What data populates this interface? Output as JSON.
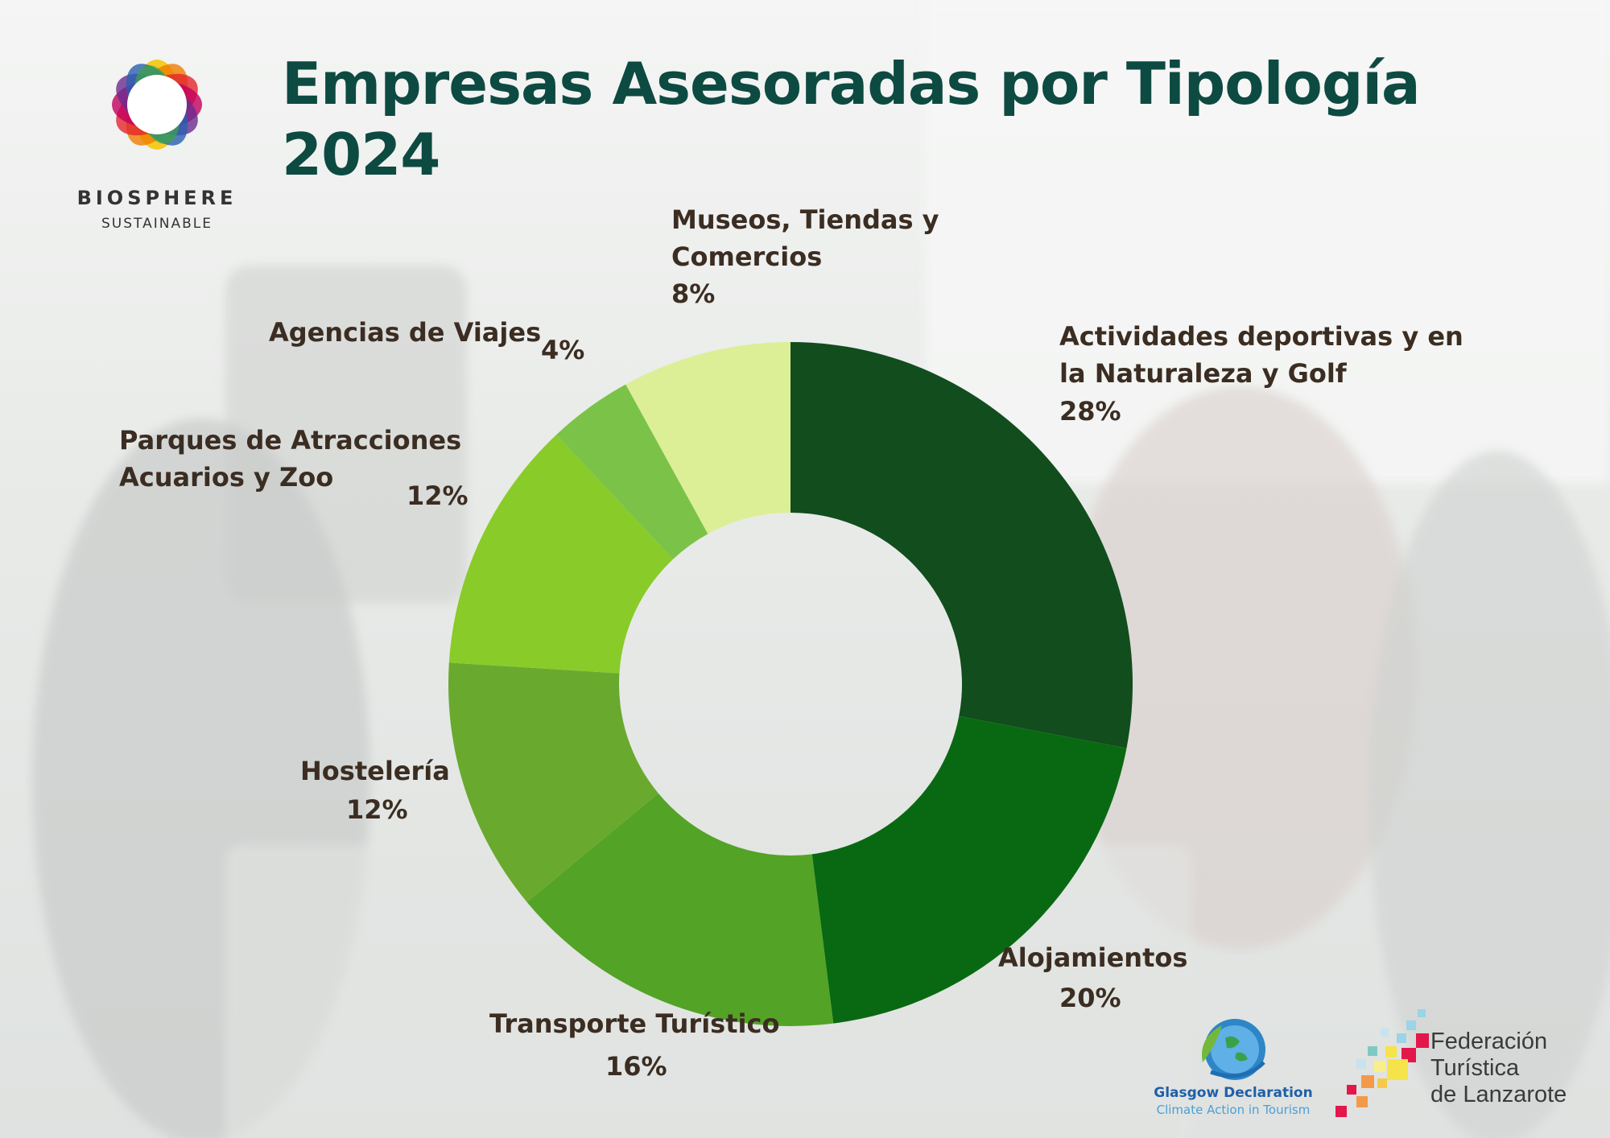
{
  "title": {
    "line1": "Empresas Asesoradas por Tipología",
    "line2": "2024"
  },
  "colors": {
    "title": "#0d4a42",
    "label": "#3b2d22"
  },
  "logos": {
    "biosphere": {
      "word": "BIOSPHERE",
      "sub": "SUSTAINABLE",
      "icon": "biosphere-flower-icon"
    },
    "glasgow": {
      "line1": "Glasgow Declaration",
      "line2": "Climate Action in Tourism",
      "icon": "globe-leaf-icon"
    },
    "federacion": {
      "line1": "Federación",
      "line2": "Turística",
      "line3": "de Lanzarote",
      "icon": "pixel-mosaic-icon"
    }
  },
  "chart_data": {
    "type": "pie",
    "donut": true,
    "title": "Empresas Asesoradas por Tipología 2024",
    "slices": [
      {
        "label": "Actividades deportivas y en la Naturaleza y Golf",
        "value": 28,
        "pct_label": "28%",
        "color": "#114d1d"
      },
      {
        "label": "Alojamientos",
        "value": 20,
        "pct_label": "20%",
        "color": "#096912"
      },
      {
        "label": "Transporte Turístico",
        "value": 16,
        "pct_label": "16%",
        "color": "#53a326"
      },
      {
        "label": "Hostelería",
        "value": 12,
        "pct_label": "12%",
        "color": "#69aa2e"
      },
      {
        "label": "Parques de Atracciones Acuarios y Zoo",
        "value": 12,
        "pct_label": "12%",
        "color": "#89cb29"
      },
      {
        "label": "Agencias de Viajes",
        "value": 4,
        "pct_label": "4%",
        "color": "#7ac348"
      },
      {
        "label": "Museos, Tiendas y Comercios",
        "value": 8,
        "pct_label": "8%",
        "color": "#dcef96"
      }
    ],
    "legend": "none"
  },
  "labels": {
    "s0": {
      "line1": "Actividades deportivas y en",
      "line2": "la Naturaleza y Golf",
      "pct": "28%"
    },
    "s1": {
      "line1": "Alojamientos",
      "pct": "20%"
    },
    "s2": {
      "line1": "Transporte Turístico",
      "pct": "16%"
    },
    "s3": {
      "line1": "Hostelería",
      "pct": "12%"
    },
    "s4": {
      "line1": "Parques de Atracciones",
      "line2": "Acuarios y Zoo",
      "pct": "12%"
    },
    "s5": {
      "line1": "Agencias de Viajes",
      "pct": "4%"
    },
    "s6": {
      "line1": "Museos, Tiendas y",
      "line2": "Comercios",
      "pct": "8%"
    }
  }
}
